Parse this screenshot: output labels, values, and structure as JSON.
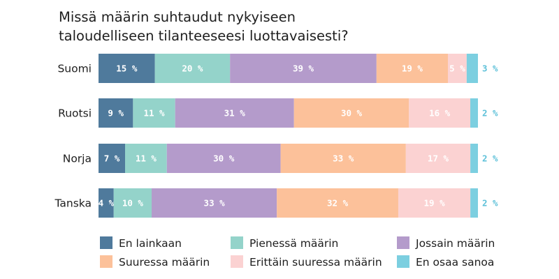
{
  "chart_data": {
    "type": "bar",
    "orientation": "horizontal",
    "stacked": true,
    "title": "Missä määrin suhtaudut nykyiseen taloudelliseen tilanteeseesi luottavaisesti?",
    "title_lines": [
      "Missä määrin suhtaudut nykyiseen",
      "taloudelliseen tilanteeseesi luottavaisesti?"
    ],
    "categories": [
      "Suomi",
      "Ruotsi",
      "Norja",
      "Tanska"
    ],
    "value_suffix": " %",
    "series": [
      {
        "name": "En lainkaan",
        "color": "#4f7a9c",
        "label_color": "#ffffff",
        "values": [
          15,
          9,
          7,
          4
        ]
      },
      {
        "name": "Pienessä määrin",
        "color": "#94d3ca",
        "label_color": "#ffffff",
        "values": [
          20,
          11,
          11,
          10
        ]
      },
      {
        "name": "Jossain määrin",
        "color": "#b49bcb",
        "label_color": "#ffffff",
        "values": [
          39,
          31,
          30,
          33
        ]
      },
      {
        "name": "Suuressa määrin",
        "color": "#fcc19a",
        "label_color": "#ffffff",
        "values": [
          19,
          30,
          33,
          32
        ]
      },
      {
        "name": "Erittäin suuressa määrin",
        "color": "#fbd2d2",
        "label_color": "#ffffff",
        "values": [
          5,
          16,
          17,
          19
        ]
      },
      {
        "name": "En osaa sanoa",
        "color": "#7ccfe0",
        "label_color": "#5ec1d9",
        "values": [
          3,
          2,
          2,
          2
        ],
        "label_outside": true
      }
    ],
    "legend_position": "bottom"
  }
}
